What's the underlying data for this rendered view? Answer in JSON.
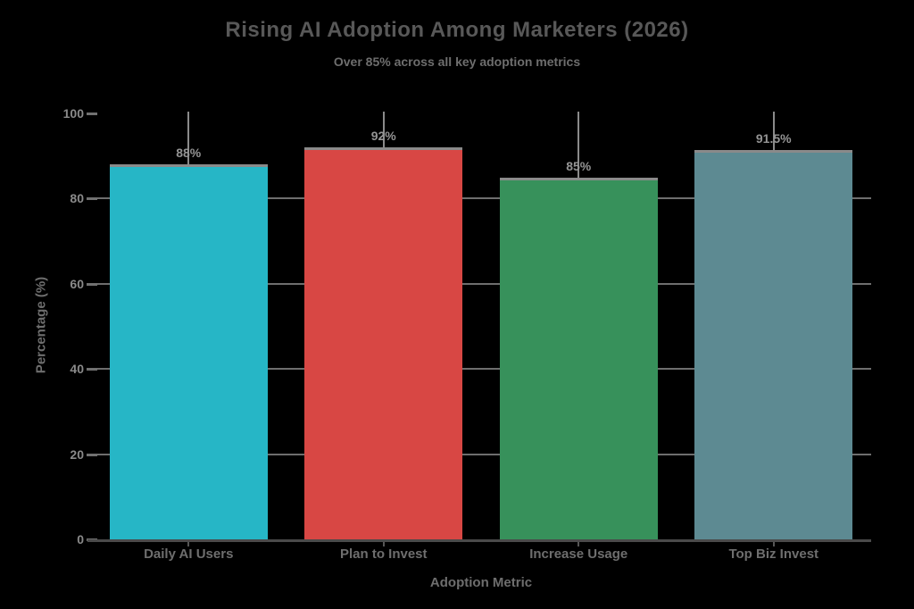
{
  "chart_data": {
    "type": "bar",
    "title": "Rising AI Adoption Among Marketers (2026)",
    "subtitle": "Over 85% across all key adoption metrics",
    "xlabel": "Adoption Metric",
    "ylabel": "Percentage (%)",
    "categories": [
      "Daily AI Users",
      "Plan to Invest",
      "Increase Usage",
      "Top Biz Invest"
    ],
    "values": [
      88,
      92,
      85,
      91.5
    ],
    "value_labels": [
      "88%",
      "92%",
      "85%",
      "91.5%"
    ],
    "bar_colors": [
      "#26b6c6",
      "#d84744",
      "#37915b",
      "#5d8a92"
    ],
    "ylim": [
      0,
      100
    ],
    "yticks": [
      0,
      20,
      40,
      60,
      80,
      100
    ],
    "gridline_yticks": [
      20,
      40,
      60,
      80
    ],
    "grid": "horizontal",
    "legend": "none",
    "annotations": "vertical gray line from 100% level down to each bar top; gray cap edge on each bar top"
  },
  "style_colors": {
    "background": "#000000",
    "title_text": "#585858",
    "subtitle_text": "#6e6e6e",
    "axis_label_text": "#6e6e6e",
    "tick_label_text": "#8a8a8a",
    "value_label_text": "#949494",
    "gridline": "#6e6e6e",
    "axis_line": "#4a4a4a",
    "drop_line": "#8a8a8a"
  }
}
